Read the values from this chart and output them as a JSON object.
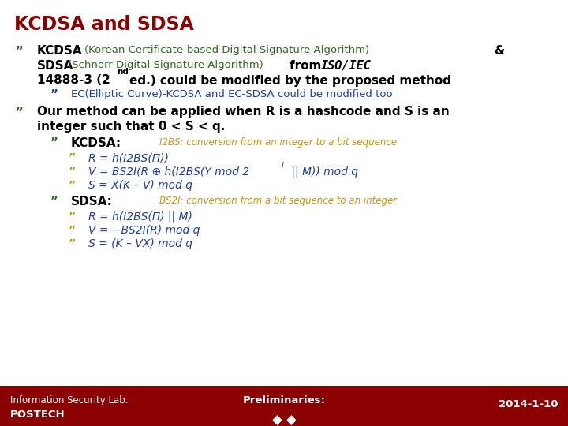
{
  "title": "KCDSA and SDSA",
  "title_color": "#8B0000",
  "bg_color": "#FFFFFF",
  "footer_bg_color": "#8B0000",
  "footer_left1": "Information Security Lab.",
  "footer_left2": "POSTECH",
  "footer_center1": "Preliminaries:",
  "footer_center2": "◆ ◆",
  "footer_right": "2014-1-10",
  "footer_text_color": "#FFFFFF",
  "dark_green": "#2D6A1F",
  "blue": "#1E3F9E",
  "orange": "#C8960C",
  "black": "#000000",
  "red_dark": "#8B0000"
}
